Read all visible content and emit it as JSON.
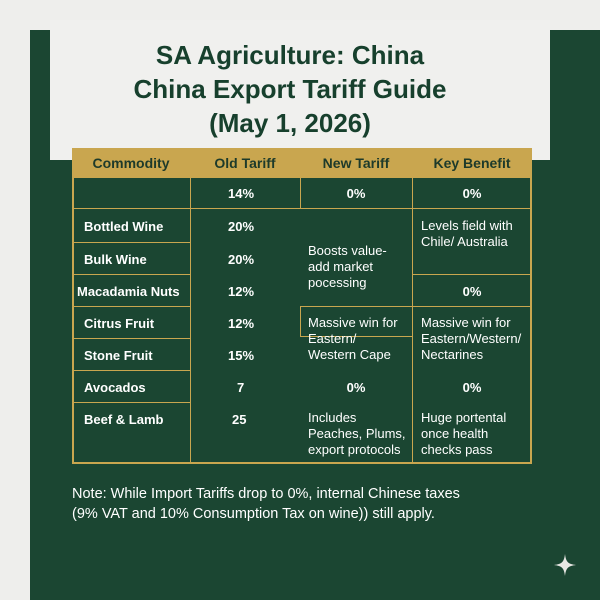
{
  "title": {
    "line1": "SA Agriculture: China",
    "line2": "China Export Tariff Guide",
    "line3": "(May 1, 2026)"
  },
  "table": {
    "headers": [
      "Commodity",
      "Old Tariff",
      "New Tariff",
      "Key Benefit"
    ],
    "rows": [
      {
        "commodity": "",
        "old": "14%"
      },
      {
        "commodity": "Bottled Wine",
        "old": "20%"
      },
      {
        "commodity": "Bulk Wine",
        "old": "20%"
      },
      {
        "commodity": "Macadamia Nuts",
        "old": "12%"
      },
      {
        "commodity": "Citrus Fruit",
        "old": "12%"
      },
      {
        "commodity": "Stone Fruit",
        "old": "15%"
      },
      {
        "commodity": "Avocados",
        "old": "7"
      },
      {
        "commodity": "Beef & Lamb",
        "old": "25"
      }
    ],
    "new_tariff_cells": [
      "0%",
      "Boosts value-add market pocessing",
      "Massive win for Eastern/ Western Cape",
      "0%",
      "Includes Peaches, Plums, export protocols"
    ],
    "benefit_cells": [
      "0%",
      "Levels field with Chile/ Australia",
      "0%",
      "Massive win for Eastern/Western/ Nectarines",
      "0%",
      "Huge portental once health checks pass"
    ]
  },
  "note": {
    "line1": "Note: While Import Tariffs drop to 0%, internal Chinese taxes",
    "line2": "(9% VAT and 10% Consumption Tax on wine)) still apply."
  },
  "colors": {
    "green": "#1b4632",
    "gold": "#c9a64f",
    "background": "#eeeeec"
  },
  "icons": {
    "corner": "sparkle-icon"
  }
}
